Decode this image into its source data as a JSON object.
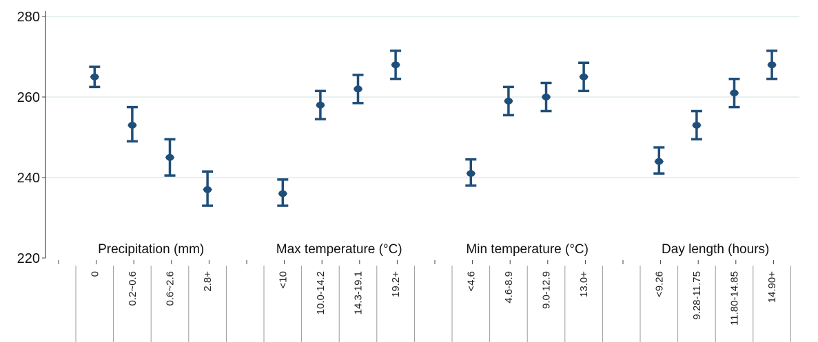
{
  "colors": {
    "marker": "#1f4e79",
    "grid": "#dbe8e8",
    "axis": "#444444",
    "separator": "#999999"
  },
  "chart_data": {
    "type": "scatter",
    "marker": "diamond-with-error-bars",
    "ylim": [
      220,
      280
    ],
    "yticks": [
      220,
      240,
      260,
      280
    ],
    "grid": true,
    "groups": [
      {
        "name": "Precipitation (mm)",
        "categories": [
          "0",
          "0.2~0.6",
          "0.6~2.6",
          "2.8+"
        ],
        "values": [
          265,
          253,
          245,
          237
        ],
        "lower": [
          262.5,
          249,
          240.5,
          233
        ],
        "upper": [
          267.5,
          257.5,
          249.5,
          241.5
        ]
      },
      {
        "name": "Max temperature (°C)",
        "categories": [
          "<10",
          "10.0-14.2",
          "14.3-19.1",
          "19.2+"
        ],
        "values": [
          236,
          258,
          262,
          268
        ],
        "lower": [
          233,
          254.5,
          258.5,
          264.5
        ],
        "upper": [
          239.5,
          261.5,
          265.5,
          271.5
        ]
      },
      {
        "name": "Min temperature (°C)",
        "categories": [
          "<4.6",
          "4.6-8.9",
          "9.0-12.9",
          "13.0+"
        ],
        "values": [
          241,
          259,
          260,
          265
        ],
        "lower": [
          238,
          255.5,
          256.5,
          261.5
        ],
        "upper": [
          244.5,
          262.5,
          263.5,
          268.5
        ]
      },
      {
        "name": "Day length (hours)",
        "categories": [
          "<9.26",
          "9.28-11.75",
          "11.80-14.85",
          "14.90+"
        ],
        "values": [
          244,
          253,
          261,
          268
        ],
        "lower": [
          241,
          249.5,
          257.5,
          264.5
        ],
        "upper": [
          247.5,
          256.5,
          264.5,
          271.5
        ]
      }
    ]
  }
}
